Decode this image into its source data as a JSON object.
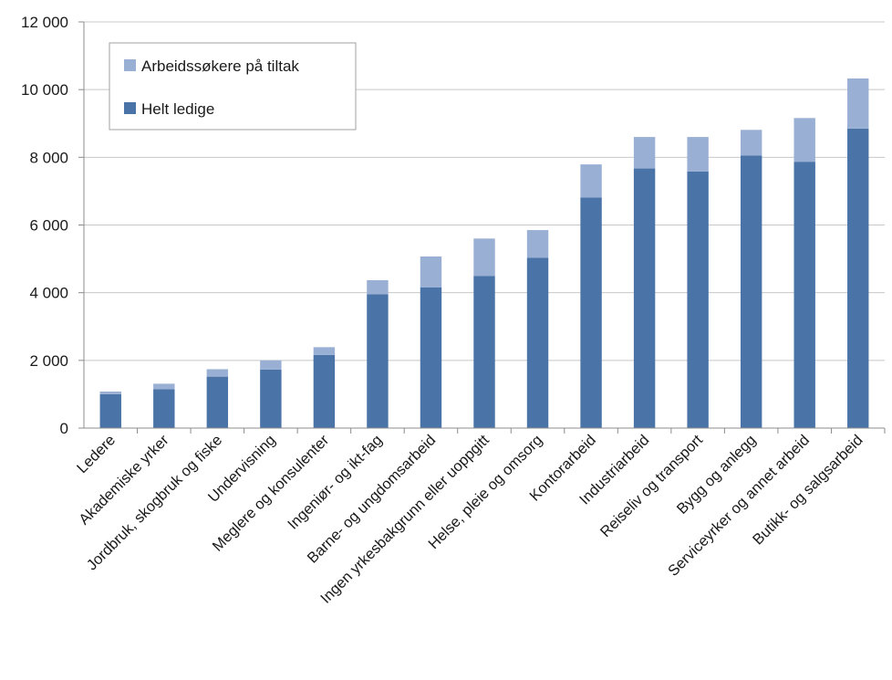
{
  "chart_data": {
    "type": "bar",
    "stacked": true,
    "title": "",
    "xlabel": "",
    "ylabel": "",
    "ylim": [
      0,
      12000
    ],
    "yticks": [
      0,
      2000,
      4000,
      6000,
      8000,
      10000,
      12000
    ],
    "ytick_labels": [
      "0",
      "2 000",
      "4 000",
      "6 000",
      "8 000",
      "10 000",
      "12 000"
    ],
    "grid": "horizontal",
    "legend_position": "top-left",
    "categories": [
      "Ledere",
      "Akademiske yrker",
      "Jordbruk, skogbruk og fiske",
      "Undervisning",
      "Meglere og konsulenter",
      "Ingeniør- og ikt-fag",
      "Barne- og ungdomsarbeid",
      "Ingen yrkesbakgrunn eller uoppgitt",
      "Helse, pleie og omsorg",
      "Kontorarbeid",
      "Industriarbeid",
      "Reiseliv og transport",
      "Bygg og anlegg",
      "Serviceyrker og annet arbeid",
      "Butikk- og salgsarbeid"
    ],
    "series": [
      {
        "name": "Helt ledige",
        "color": "#4a74a8",
        "values": [
          1000,
          1150,
          1520,
          1730,
          2160,
          3950,
          4160,
          4490,
          5030,
          6810,
          7670,
          7580,
          8050,
          7870,
          8850
        ]
      },
      {
        "name": "Arbeidssøkere på tiltak",
        "color": "#9aafd4",
        "values": [
          80,
          160,
          220,
          270,
          230,
          420,
          910,
          1110,
          820,
          980,
          930,
          1020,
          760,
          1290,
          1480
        ]
      }
    ],
    "legend_order": [
      "Arbeidssøkere på tiltak",
      "Helt ledige"
    ]
  }
}
